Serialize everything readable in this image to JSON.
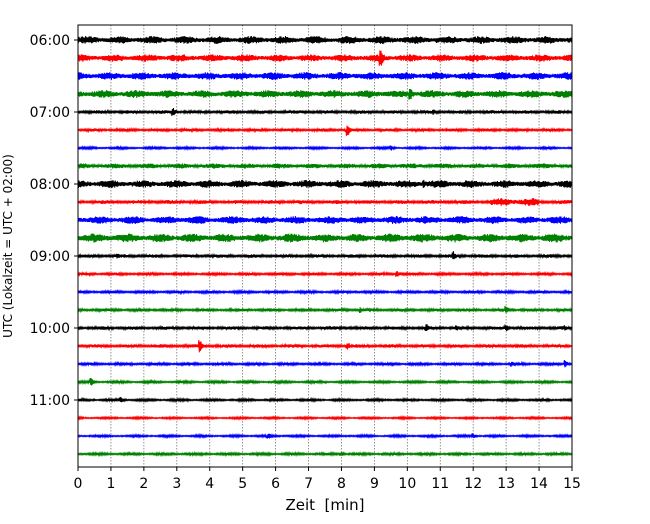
{
  "chart_data": {
    "type": "line",
    "title": "",
    "xlabel": "Zeit  [min]",
    "ylabel": "UTC (Lokalzeit = UTC + 02:00)",
    "xlim": [
      0,
      15
    ],
    "x_ticks": [
      "0",
      "1",
      "2",
      "3",
      "4",
      "5",
      "6",
      "7",
      "8",
      "9",
      "10",
      "11",
      "12",
      "13",
      "14",
      "15"
    ],
    "y_ticks": [
      "06:00",
      "07:00",
      "08:00",
      "09:00",
      "10:00",
      "11:00"
    ],
    "grid": "vertical dotted",
    "trace_interval_min": 15,
    "color_cycle": [
      "#000000",
      "#ff0000",
      "#0000ff",
      "#008000"
    ],
    "traces": [
      {
        "start": "06:00",
        "amp": 4.0,
        "events": [
          [
            10.9,
            3
          ]
        ]
      },
      {
        "start": "06:15",
        "amp": 3.8,
        "events": [
          [
            9.2,
            9
          ]
        ]
      },
      {
        "start": "06:30",
        "amp": 4.0,
        "events": []
      },
      {
        "start": "06:45",
        "amp": 4.0,
        "events": [
          [
            10.1,
            6
          ]
        ]
      },
      {
        "start": "07:00",
        "amp": 1.8,
        "events": [
          [
            2.9,
            4
          ],
          [
            10.8,
            3
          ]
        ]
      },
      {
        "start": "07:15",
        "amp": 1.6,
        "events": [
          [
            8.2,
            6
          ]
        ]
      },
      {
        "start": "07:30",
        "amp": 1.2,
        "events": [
          [
            9.5,
            3
          ]
        ]
      },
      {
        "start": "07:45",
        "amp": 2.6,
        "events": []
      },
      {
        "start": "08:00",
        "amp": 4.0,
        "events": [
          [
            10.5,
            5
          ]
        ]
      },
      {
        "start": "08:15",
        "amp": 2.0,
        "events": [
          [
            13.0,
            4.5
          ],
          [
            13.6,
            4
          ]
        ]
      },
      {
        "start": "08:30",
        "amp": 4.0,
        "events": []
      },
      {
        "start": "08:45",
        "amp": 4.5,
        "events": []
      },
      {
        "start": "09:00",
        "amp": 1.8,
        "events": [
          [
            11.4,
            5
          ],
          [
            1.2,
            3
          ]
        ]
      },
      {
        "start": "09:15",
        "amp": 1.5,
        "events": [
          [
            9.7,
            3
          ]
        ]
      },
      {
        "start": "09:30",
        "amp": 1.5,
        "events": []
      },
      {
        "start": "09:45",
        "amp": 1.6,
        "events": [
          [
            13.0,
            4
          ],
          [
            8.6,
            3
          ]
        ]
      },
      {
        "start": "10:00",
        "amp": 1.8,
        "events": [
          [
            10.6,
            4
          ],
          [
            11.5,
            3.5
          ],
          [
            13.0,
            4
          ],
          [
            14.8,
            3
          ]
        ]
      },
      {
        "start": "10:15",
        "amp": 1.8,
        "events": [
          [
            3.7,
            7
          ],
          [
            8.2,
            4
          ]
        ]
      },
      {
        "start": "10:30",
        "amp": 1.5,
        "events": [
          [
            14.8,
            4
          ],
          [
            13.2,
            3
          ]
        ]
      },
      {
        "start": "10:45",
        "amp": 1.3,
        "events": [
          [
            0.4,
            4.5
          ]
        ]
      },
      {
        "start": "11:00",
        "amp": 1.3,
        "events": [
          [
            1.3,
            3.5
          ]
        ]
      },
      {
        "start": "11:15",
        "amp": 1.1,
        "events": []
      },
      {
        "start": "11:30",
        "amp": 1.2,
        "events": [
          [
            5.8,
            3
          ],
          [
            12.0,
            3
          ]
        ]
      },
      {
        "start": "11:45",
        "amp": 1.4,
        "events": [
          [
            8.0,
            2.5
          ]
        ]
      }
    ]
  }
}
